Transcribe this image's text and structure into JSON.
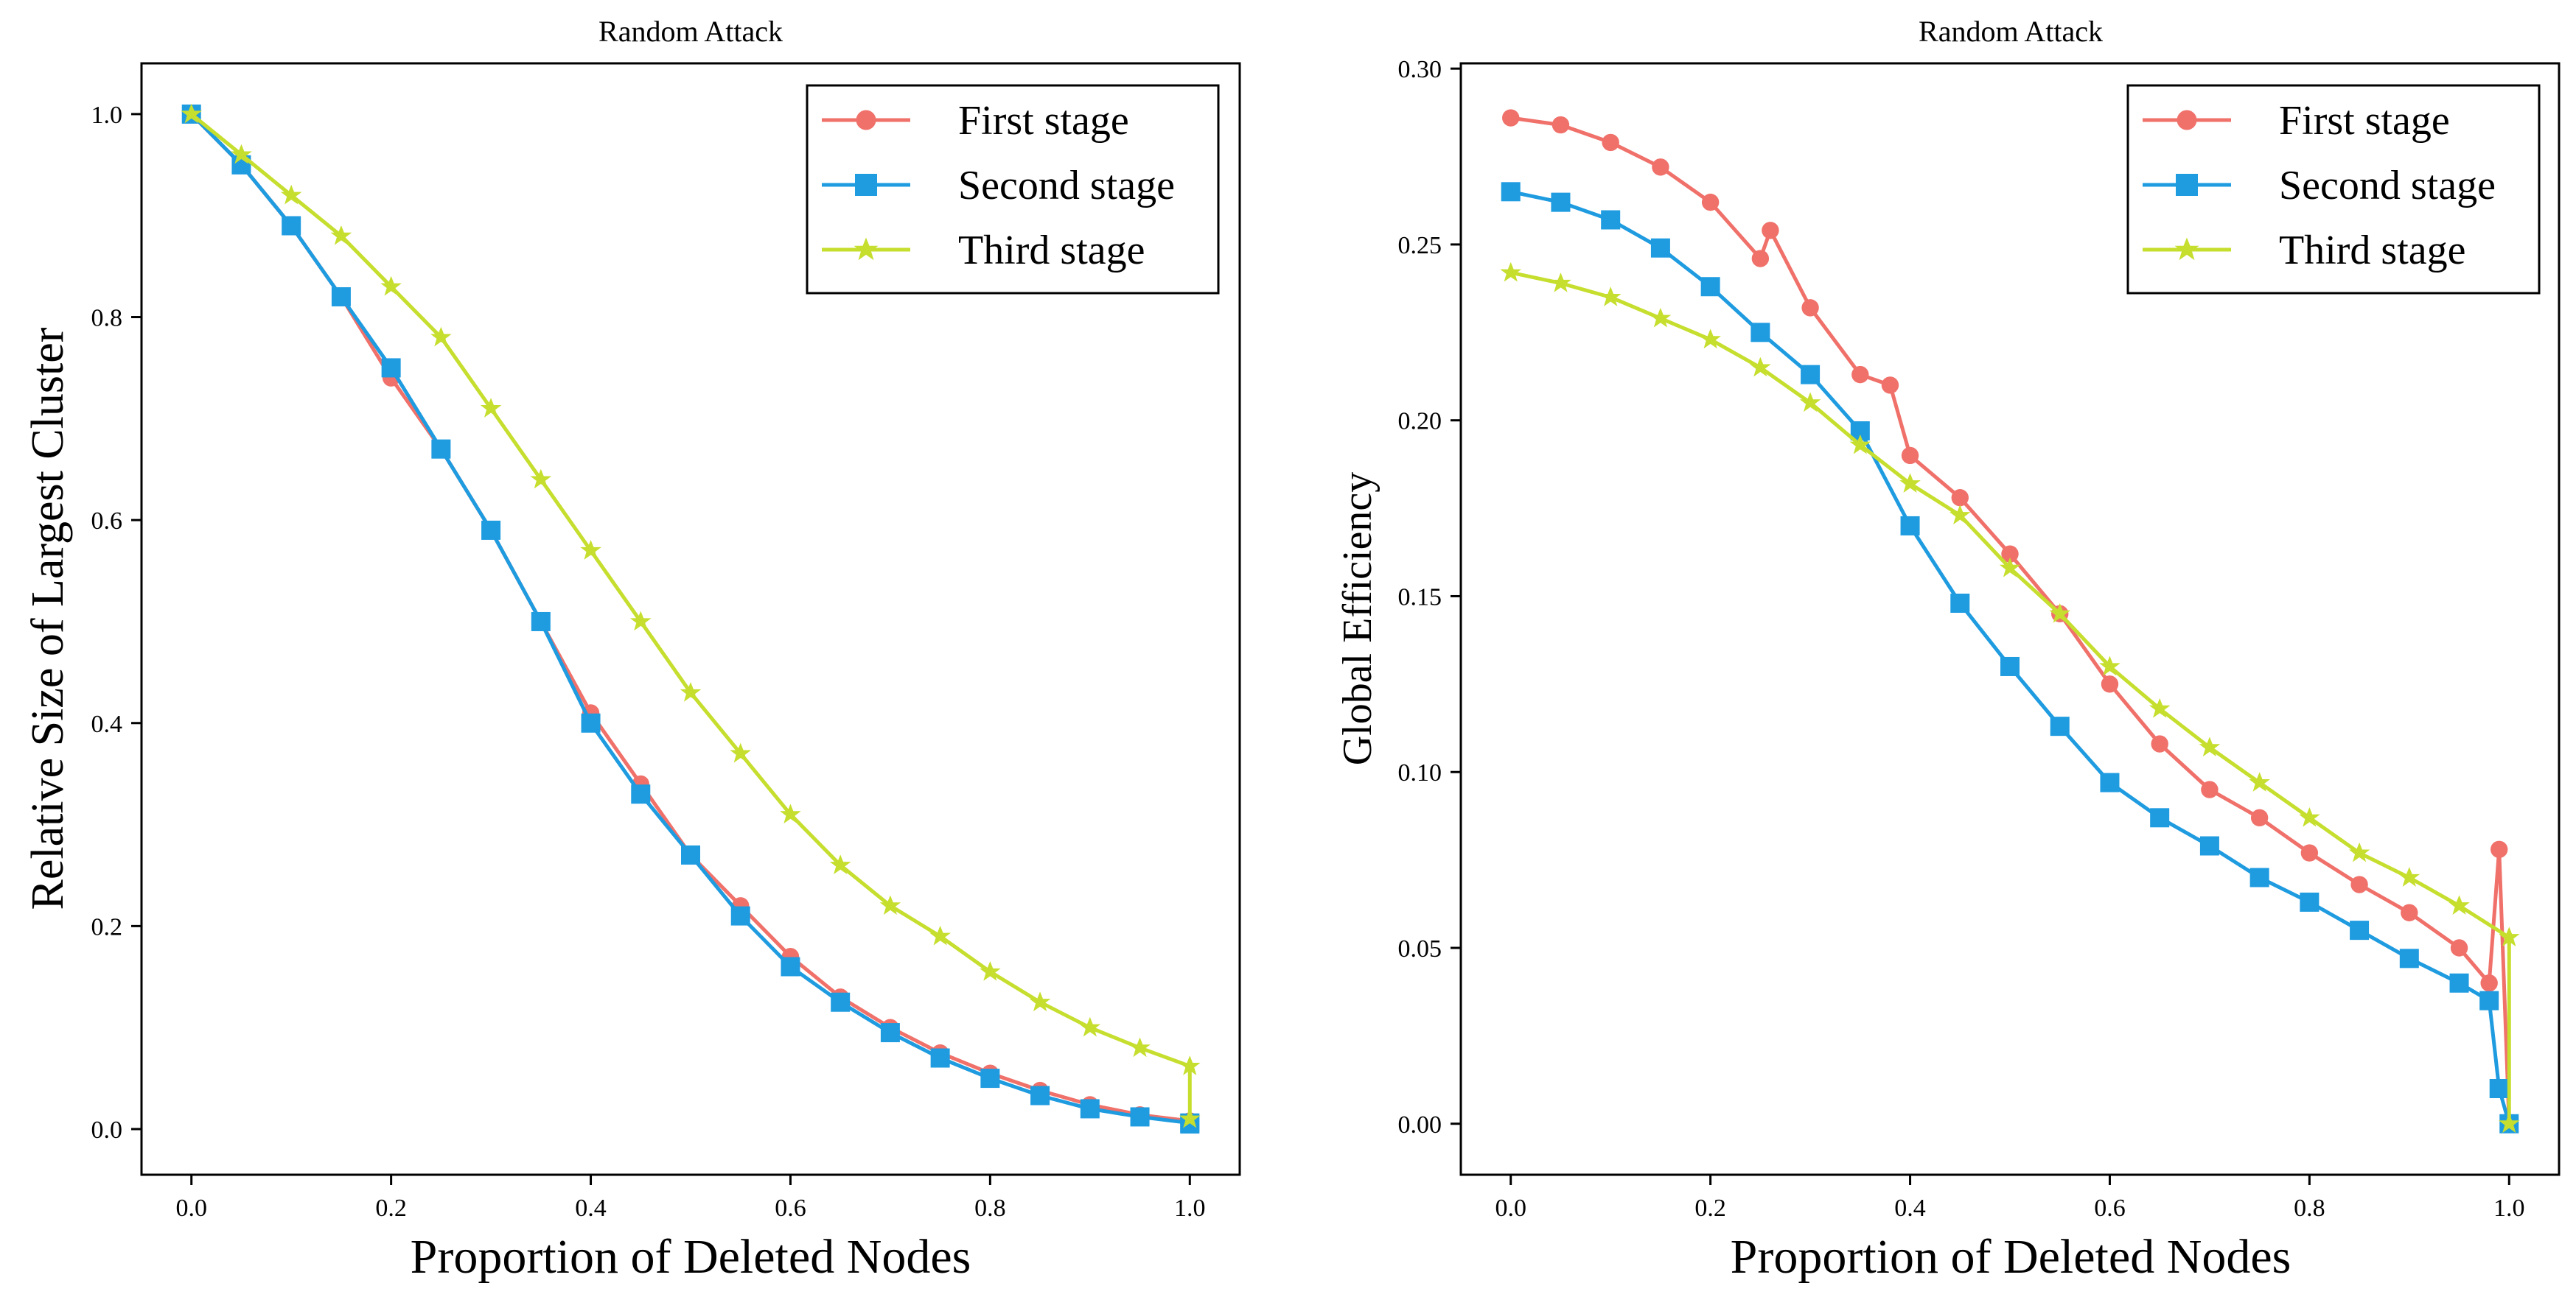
{
  "chart_data": [
    {
      "type": "line",
      "title": "Random Attack",
      "xlabel": "Proportion of Deleted Nodes",
      "ylabel": "Relative Size of Largest Cluster",
      "xlim": [
        -0.05,
        1.05
      ],
      "ylim": [
        -0.045,
        1.05
      ],
      "xticks": [
        "0.0",
        "0.2",
        "0.4",
        "0.6",
        "0.8",
        "1.0"
      ],
      "yticks": [
        "0.0",
        "0.2",
        "0.4",
        "0.6",
        "0.8",
        "1.0"
      ],
      "legend_position": "top-right",
      "grid": false,
      "series": [
        {
          "name": "First stage",
          "color": "#F0706A",
          "marker": "circle",
          "x": [
            0.0,
            0.05,
            0.1,
            0.15,
            0.2,
            0.25,
            0.3,
            0.35,
            0.4,
            0.45,
            0.5,
            0.55,
            0.6,
            0.65,
            0.7,
            0.75,
            0.8,
            0.85,
            0.9,
            0.95,
            1.0,
            1.0
          ],
          "y": [
            1.0,
            0.95,
            0.89,
            0.82,
            0.74,
            0.67,
            0.59,
            0.5,
            0.41,
            0.34,
            0.27,
            0.22,
            0.17,
            0.13,
            0.1,
            0.075,
            0.055,
            0.038,
            0.024,
            0.014,
            0.008,
            0.005
          ]
        },
        {
          "name": "Second stage",
          "color": "#1F9BE0",
          "marker": "square",
          "x": [
            0.0,
            0.05,
            0.1,
            0.15,
            0.2,
            0.25,
            0.3,
            0.35,
            0.4,
            0.45,
            0.5,
            0.55,
            0.6,
            0.65,
            0.7,
            0.75,
            0.8,
            0.85,
            0.9,
            0.95,
            1.0,
            1.0
          ],
          "y": [
            1.0,
            0.95,
            0.89,
            0.82,
            0.75,
            0.67,
            0.59,
            0.5,
            0.4,
            0.33,
            0.27,
            0.21,
            0.16,
            0.125,
            0.095,
            0.07,
            0.05,
            0.033,
            0.02,
            0.012,
            0.006,
            0.005
          ]
        },
        {
          "name": "Third stage",
          "color": "#C6DE2E",
          "marker": "star",
          "x": [
            0.0,
            0.05,
            0.1,
            0.15,
            0.2,
            0.25,
            0.3,
            0.35,
            0.4,
            0.45,
            0.5,
            0.55,
            0.6,
            0.65,
            0.7,
            0.75,
            0.8,
            0.85,
            0.9,
            0.95,
            1.0,
            1.0
          ],
          "y": [
            1.0,
            0.96,
            0.92,
            0.88,
            0.83,
            0.78,
            0.71,
            0.64,
            0.57,
            0.5,
            0.43,
            0.37,
            0.31,
            0.26,
            0.22,
            0.19,
            0.155,
            0.125,
            0.1,
            0.08,
            0.062,
            0.01
          ]
        }
      ]
    },
    {
      "type": "line",
      "title": "Random Attack",
      "xlabel": "Proportion of Deleted Nodes",
      "ylabel": "Global Efficiency",
      "xlim": [
        -0.05,
        1.05
      ],
      "ylim": [
        -0.0145,
        0.3015
      ],
      "xticks": [
        "0.0",
        "0.2",
        "0.4",
        "0.6",
        "0.8",
        "1.0"
      ],
      "yticks": [
        "0.00",
        "0.05",
        "0.10",
        "0.15",
        "0.20",
        "0.25",
        "0.30"
      ],
      "legend_position": "top-right",
      "grid": false,
      "series": [
        {
          "name": "First stage",
          "color": "#F0706A",
          "marker": "circle",
          "x": [
            0.0,
            0.05,
            0.1,
            0.15,
            0.2,
            0.25,
            0.26,
            0.3,
            0.35,
            0.38,
            0.4,
            0.45,
            0.5,
            0.55,
            0.6,
            0.65,
            0.7,
            0.75,
            0.8,
            0.85,
            0.9,
            0.95,
            0.98,
            0.99,
            1.0
          ],
          "y": [
            0.286,
            0.284,
            0.279,
            0.272,
            0.262,
            0.246,
            0.254,
            0.232,
            0.213,
            0.21,
            0.19,
            0.178,
            0.162,
            0.145,
            0.125,
            0.108,
            0.095,
            0.087,
            0.077,
            0.068,
            0.06,
            0.05,
            0.04,
            0.078,
            0.0
          ]
        },
        {
          "name": "Second stage",
          "color": "#1F9BE0",
          "marker": "square",
          "x": [
            0.0,
            0.05,
            0.1,
            0.15,
            0.2,
            0.25,
            0.3,
            0.35,
            0.4,
            0.45,
            0.5,
            0.55,
            0.6,
            0.65,
            0.7,
            0.75,
            0.8,
            0.85,
            0.9,
            0.95,
            0.98,
            0.99,
            1.0
          ],
          "y": [
            0.265,
            0.262,
            0.257,
            0.249,
            0.238,
            0.225,
            0.213,
            0.197,
            0.17,
            0.148,
            0.13,
            0.113,
            0.097,
            0.087,
            0.079,
            0.07,
            0.063,
            0.055,
            0.047,
            0.04,
            0.035,
            0.01,
            0.0
          ]
        },
        {
          "name": "Third stage",
          "color": "#C6DE2E",
          "marker": "star",
          "x": [
            0.0,
            0.05,
            0.1,
            0.15,
            0.2,
            0.25,
            0.3,
            0.35,
            0.4,
            0.45,
            0.5,
            0.55,
            0.6,
            0.65,
            0.7,
            0.75,
            0.8,
            0.85,
            0.9,
            0.95,
            1.0,
            1.0
          ],
          "y": [
            0.242,
            0.239,
            0.235,
            0.229,
            0.223,
            0.215,
            0.205,
            0.193,
            0.182,
            0.173,
            0.158,
            0.145,
            0.13,
            0.118,
            0.107,
            0.097,
            0.087,
            0.077,
            0.07,
            0.062,
            0.053,
            0.0
          ]
        }
      ]
    }
  ]
}
